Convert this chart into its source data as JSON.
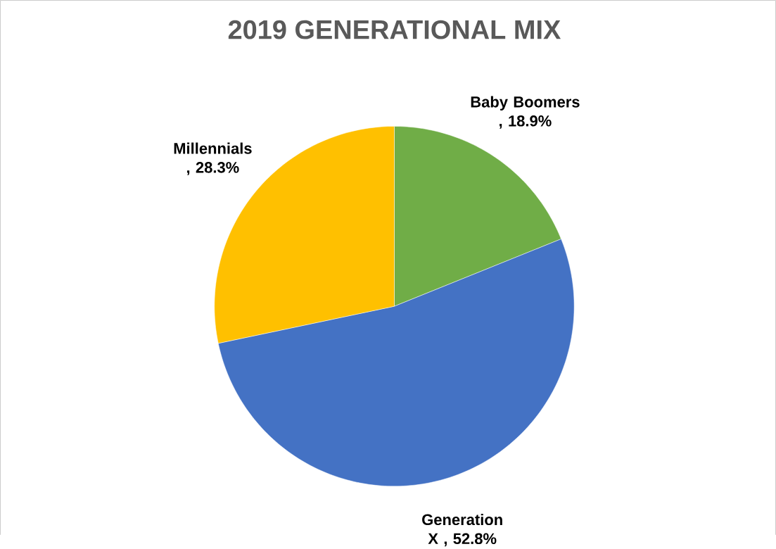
{
  "chart_data": {
    "type": "pie",
    "title": "2019  GENERATIONAL MIX",
    "categories": [
      "Baby Boomers",
      "Generation X",
      "Millennials"
    ],
    "values": [
      18.9,
      52.8,
      28.3
    ],
    "value_labels": [
      ", 18.9%",
      ", 52.8%",
      ", 28.3%"
    ],
    "colors": [
      "#70ad47",
      "#4472c4",
      "#ffc000"
    ],
    "legend": false
  }
}
